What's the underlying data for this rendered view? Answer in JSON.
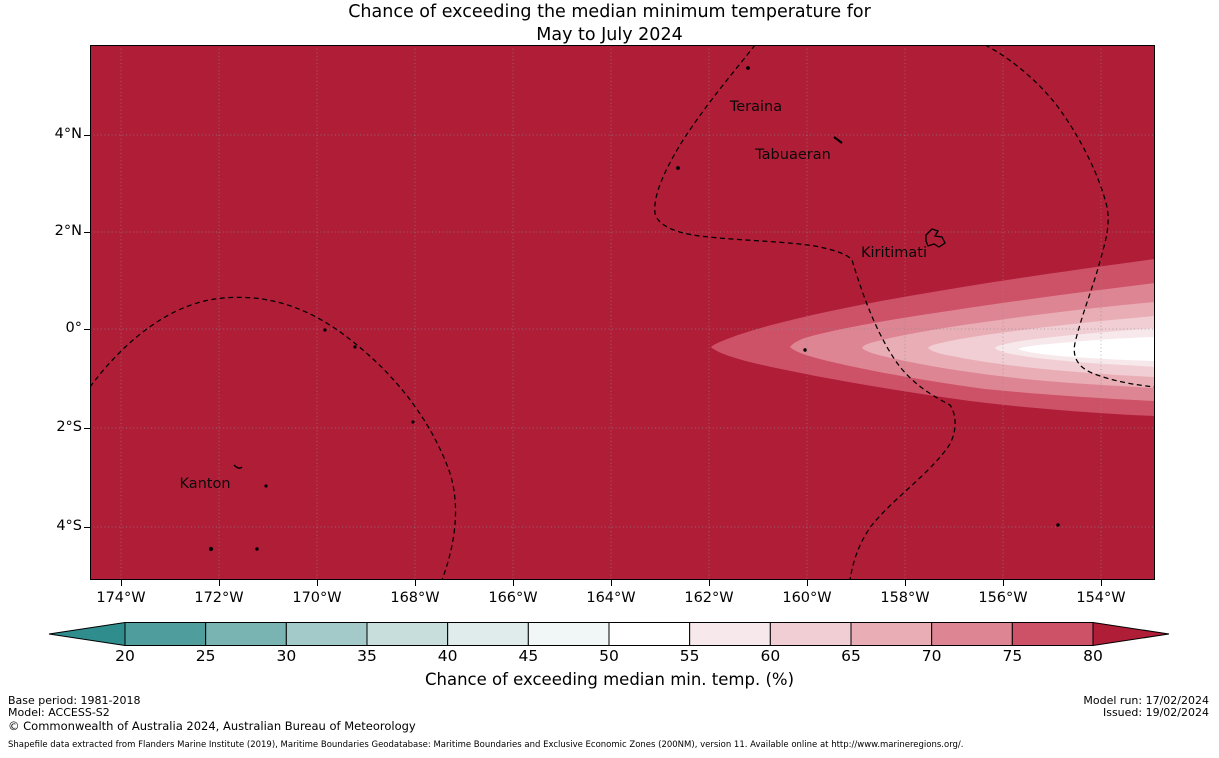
{
  "title": {
    "line1": "Chance of exceeding the median minimum temperature for",
    "line2": "May to July 2024"
  },
  "map": {
    "background_value_color": "#b01d37",
    "islands": [
      {
        "name": "Teraina"
      },
      {
        "name": "Tabuaeran"
      },
      {
        "name": "Kiritimati"
      },
      {
        "name": "Kanton"
      }
    ],
    "lat_ticks": [
      "4°N",
      "2°N",
      "0°",
      "2°S",
      "4°S"
    ],
    "lon_ticks": [
      "174°W",
      "172°W",
      "170°W",
      "168°W",
      "166°W",
      "164°W",
      "162°W",
      "160°W",
      "158°W",
      "156°W",
      "154°W"
    ]
  },
  "colorbar": {
    "label": "Chance of exceeding median min. temp. (%)",
    "ticks": [
      "20",
      "25",
      "30",
      "35",
      "40",
      "45",
      "50",
      "55",
      "60",
      "65",
      "70",
      "75",
      "80"
    ],
    "segment_colors": [
      "#4f9e9d",
      "#79b4b3",
      "#a3cac9",
      "#c7dedd",
      "#e0ecec",
      "#f1f6f6",
      "#ffffff",
      "#f7e9eb",
      "#f1ced4",
      "#e9adb6",
      "#de8593",
      "#cd5268"
    ],
    "left_arrow_color": "#2f8e8d",
    "right_arrow_color": "#b01d37"
  },
  "footer": {
    "base_period": "Base period: 1981-2018",
    "model": "Model: ACCESS-S2",
    "copyright": "© Commonwealth of Australia 2024, Australian Bureau of Meteorology",
    "model_run": "Model run: 17/02/2024",
    "issued": "Issued: 19/02/2024",
    "shapefile_note": "Shapefile data extracted from Flanders Marine Institute (2019), Maritime Boundaries Geodatabase: Maritime Boundaries and Exclusive Economic Zones (200NM), version 11. Available online at http://www.marineregions.org/."
  }
}
